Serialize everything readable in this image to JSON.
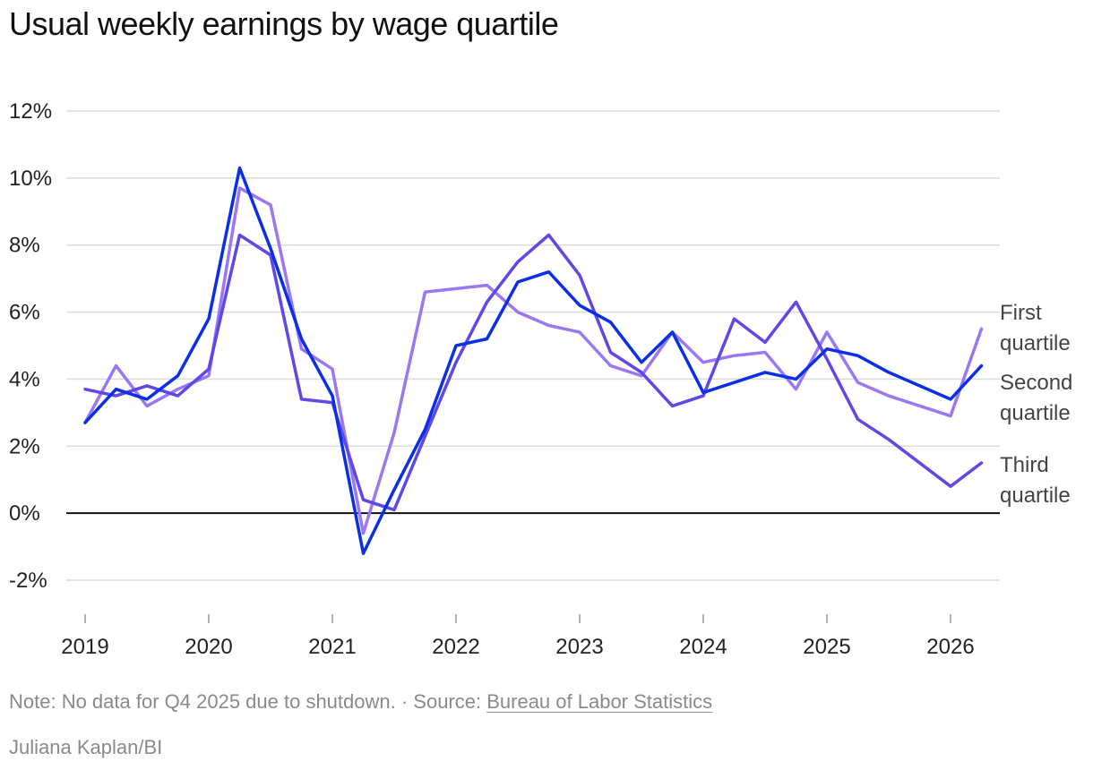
{
  "chart_data": {
    "type": "line",
    "title": "Usual weekly earnings by wage quartile",
    "xlabel": "",
    "ylabel": "",
    "x_range": [
      2018.92,
      2026.42
    ],
    "ylim": [
      -3,
      12.5
    ],
    "y_ticks": [
      12,
      10,
      8,
      6,
      4,
      2,
      0,
      -2
    ],
    "y_tick_labels": [
      "12%",
      "10%",
      "8%",
      "6%",
      "4%",
      "2%",
      "0%",
      "-2%"
    ],
    "x_ticks": [
      2019,
      2020,
      2021,
      2022,
      2023,
      2024,
      2025,
      2026
    ],
    "x_tick_labels": [
      "2019",
      "2020",
      "2021",
      "2022",
      "2023",
      "2024",
      "2025",
      "2026"
    ],
    "grid": "horizontal",
    "zero_line": true,
    "legend": "inline-right",
    "x": [
      "2019 Q1",
      "2019 Q2",
      "2019 Q3",
      "2019 Q4",
      "2020 Q1",
      "2020 Q2",
      "2020 Q3",
      "2020 Q4",
      "2021 Q1",
      "2021 Q2",
      "2021 Q3",
      "2021 Q4",
      "2022 Q1",
      "2022 Q2",
      "2022 Q3",
      "2022 Q4",
      "2023 Q1",
      "2023 Q2",
      "2023 Q3",
      "2023 Q4",
      "2024 Q1",
      "2024 Q2",
      "2024 Q3",
      "2024 Q4",
      "2025 Q1",
      "2025 Q2",
      "2025 Q3",
      "2026 Q1",
      "2026 Q2"
    ],
    "series": [
      {
        "name": "First quartile",
        "label_lines": [
          "First",
          "quartile"
        ],
        "color": "#9b78f3",
        "values": [
          2.7,
          4.4,
          3.2,
          3.7,
          4.1,
          9.7,
          9.2,
          4.9,
          4.3,
          -0.6,
          2.4,
          6.6,
          6.7,
          6.8,
          6.0,
          5.6,
          5.4,
          4.4,
          4.1,
          5.4,
          4.5,
          4.7,
          4.8,
          3.7,
          5.4,
          3.9,
          3.5,
          2.9,
          5.5
        ]
      },
      {
        "name": "Second quartile",
        "label_lines": [
          "Second",
          "quartile"
        ],
        "color": "#0a2fe6",
        "values": [
          2.7,
          3.7,
          3.4,
          4.1,
          5.8,
          10.3,
          7.9,
          5.2,
          3.5,
          -1.2,
          0.7,
          2.5,
          5.0,
          5.2,
          6.9,
          7.2,
          6.2,
          5.7,
          4.5,
          5.4,
          3.6,
          3.9,
          4.2,
          4.0,
          4.9,
          4.7,
          4.2,
          3.4,
          4.4
        ]
      },
      {
        "name": "Third quartile",
        "label_lines": [
          "Third",
          "quartile"
        ],
        "color": "#5e48e8",
        "values": [
          3.7,
          3.5,
          3.8,
          3.5,
          4.3,
          8.3,
          7.7,
          3.4,
          3.3,
          0.4,
          0.1,
          2.3,
          4.5,
          6.3,
          7.5,
          8.3,
          7.1,
          4.8,
          4.2,
          3.2,
          3.5,
          5.8,
          5.1,
          6.3,
          4.6,
          2.8,
          2.2,
          0.8,
          1.5
        ]
      }
    ]
  },
  "footer": {
    "note": "Note: No data for Q4 2025 due to shutdown. · Source: ",
    "source_link": "Bureau of Labor Statistics",
    "credit": "Juliana Kaplan/BI"
  }
}
